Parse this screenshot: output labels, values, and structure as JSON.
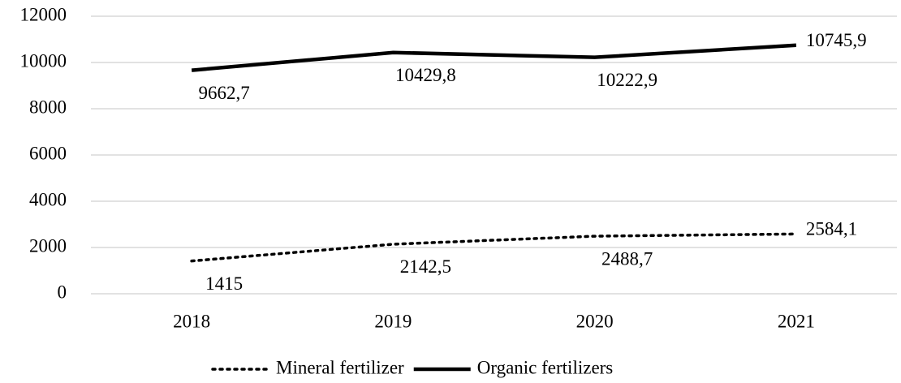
{
  "chart_data": {
    "type": "line",
    "categories": [
      "2018",
      "2019",
      "2020",
      "2021"
    ],
    "series": [
      {
        "name": "Mineral fertilizer",
        "color": "#000000",
        "line_style": "dotted",
        "values": [
          1415,
          2142.5,
          2488.7,
          2584.1
        ],
        "value_labels": [
          "1415",
          "2142,5",
          "2488,7",
          "2584,1"
        ]
      },
      {
        "name": "Organic fertilizers",
        "color": "#000000",
        "line_style": "solid",
        "values": [
          9662.7,
          10429.8,
          10222.9,
          10745.9
        ],
        "value_labels": [
          "9662,7",
          "10429,8",
          "10222,9",
          "10745,9"
        ]
      }
    ],
    "ylim": [
      0,
      12000
    ],
    "yticks": [
      0,
      2000,
      4000,
      6000,
      8000,
      10000,
      12000
    ],
    "grid": true,
    "legend": "bottom"
  }
}
